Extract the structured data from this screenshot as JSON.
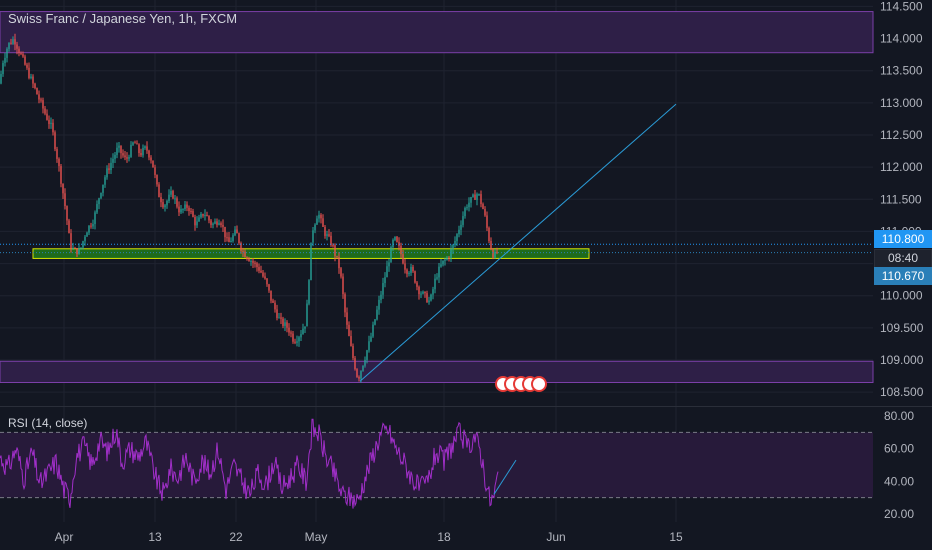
{
  "header": {
    "title": "Swiss Franc / Japanese Yen, 1h, FXCM"
  },
  "rsi_header": {
    "title": "RSI (14, close)"
  },
  "price_tags": {
    "last_price": "110.800",
    "countdown": "08:40",
    "prev_price": "110.670"
  },
  "colors": {
    "background": "#131722",
    "up_candle": "#26a69a",
    "down_candle": "#ef5350",
    "zone_purple": "#2e1f47",
    "zone_green": "#1f6b1c",
    "trendline": "#2a9bd6",
    "rsi_line": "#a12fc9",
    "axis_text": "#b2b5be"
  },
  "chart_data": [
    {
      "type": "candlestick",
      "title": "Swiss Franc / Japanese Yen, 1h, FXCM",
      "ylim": [
        108.3,
        114.6
      ],
      "y_ticks": [
        "114.500",
        "114.000",
        "113.500",
        "113.000",
        "112.500",
        "112.000",
        "111.500",
        "111.000",
        "110.500",
        "110.000",
        "109.500",
        "109.000",
        "108.500"
      ],
      "x_ticks": [
        "Apr",
        "13",
        "22",
        "May",
        "18",
        "Jun",
        "15"
      ],
      "waypoints": [
        [
          0,
          113.3
        ],
        [
          2,
          113.6
        ],
        [
          8,
          113.9
        ],
        [
          14,
          114.0
        ],
        [
          22,
          113.7
        ],
        [
          30,
          113.4
        ],
        [
          38,
          113.1
        ],
        [
          46,
          112.8
        ],
        [
          52,
          112.6
        ],
        [
          60,
          111.9
        ],
        [
          66,
          111.3
        ],
        [
          70,
          110.8
        ],
        [
          74,
          110.7
        ],
        [
          80,
          110.7
        ],
        [
          86,
          111.0
        ],
        [
          94,
          111.2
        ],
        [
          100,
          111.6
        ],
        [
          106,
          111.9
        ],
        [
          112,
          112.1
        ],
        [
          118,
          112.3
        ],
        [
          126,
          112.1
        ],
        [
          134,
          112.4
        ],
        [
          140,
          112.2
        ],
        [
          146,
          112.3
        ],
        [
          152,
          112.1
        ],
        [
          158,
          111.6
        ],
        [
          164,
          111.4
        ],
        [
          172,
          111.6
        ],
        [
          180,
          111.3
        ],
        [
          188,
          111.4
        ],
        [
          196,
          111.1
        ],
        [
          204,
          111.3
        ],
        [
          212,
          111.1
        ],
        [
          220,
          111.2
        ],
        [
          228,
          110.8
        ],
        [
          236,
          111.0
        ],
        [
          242,
          110.7
        ],
        [
          248,
          110.6
        ],
        [
          254,
          110.5
        ],
        [
          260,
          110.4
        ],
        [
          266,
          110.2
        ],
        [
          272,
          109.9
        ],
        [
          280,
          109.6
        ],
        [
          288,
          109.5
        ],
        [
          294,
          109.3
        ],
        [
          300,
          109.4
        ],
        [
          306,
          109.6
        ],
        [
          312,
          111.0
        ],
        [
          318,
          111.3
        ],
        [
          324,
          111.0
        ],
        [
          332,
          110.8
        ],
        [
          340,
          110.4
        ],
        [
          346,
          109.6
        ],
        [
          352,
          109.1
        ],
        [
          358,
          108.7
        ],
        [
          364,
          109.0
        ],
        [
          370,
          109.3
        ],
        [
          376,
          109.7
        ],
        [
          382,
          110.1
        ],
        [
          388,
          110.5
        ],
        [
          394,
          110.9
        ],
        [
          400,
          110.7
        ],
        [
          406,
          110.4
        ],
        [
          412,
          110.4
        ],
        [
          418,
          110.1
        ],
        [
          424,
          110.0
        ],
        [
          430,
          109.9
        ],
        [
          436,
          110.3
        ],
        [
          442,
          110.5
        ],
        [
          448,
          110.6
        ],
        [
          454,
          110.8
        ],
        [
          460,
          111.1
        ],
        [
          466,
          111.4
        ],
        [
          472,
          111.5
        ],
        [
          478,
          111.6
        ],
        [
          484,
          111.3
        ],
        [
          490,
          110.8
        ],
        [
          494,
          110.6
        ],
        [
          498,
          110.7
        ]
      ],
      "zones": [
        {
          "kind": "resistance",
          "y_from": 113.78,
          "y_to": 114.42
        },
        {
          "kind": "demand",
          "y_from": 110.58,
          "y_to": 110.73
        },
        {
          "kind": "support",
          "y_from": 108.65,
          "y_to": 108.98
        }
      ],
      "trendlines": [
        {
          "from": [
            360,
            108.67
          ],
          "to": [
            676,
            112.98
          ]
        }
      ],
      "reference_lines": [
        {
          "y": 110.8,
          "style": "dotted"
        },
        {
          "y": 110.67,
          "style": "dotted"
        }
      ]
    },
    {
      "type": "line",
      "title": "RSI (14, close)",
      "ylim": [
        15,
        85
      ],
      "y_ticks": [
        "80.00",
        "60.00",
        "40.00",
        "20.00"
      ],
      "levels": [
        70,
        30
      ],
      "band": [
        30,
        70
      ],
      "waypoints": [
        [
          0,
          55
        ],
        [
          8,
          48
        ],
        [
          16,
          60
        ],
        [
          24,
          42
        ],
        [
          32,
          58
        ],
        [
          40,
          38
        ],
        [
          48,
          45
        ],
        [
          56,
          52
        ],
        [
          64,
          35
        ],
        [
          70,
          30
        ],
        [
          76,
          55
        ],
        [
          84,
          62
        ],
        [
          92,
          50
        ],
        [
          100,
          65
        ],
        [
          108,
          58
        ],
        [
          116,
          72
        ],
        [
          122,
          52
        ],
        [
          130,
          60
        ],
        [
          138,
          55
        ],
        [
          146,
          64
        ],
        [
          152,
          50
        ],
        [
          158,
          38
        ],
        [
          164,
          32
        ],
        [
          170,
          48
        ],
        [
          178,
          42
        ],
        [
          186,
          55
        ],
        [
          194,
          40
        ],
        [
          202,
          52
        ],
        [
          210,
          45
        ],
        [
          218,
          60
        ],
        [
          226,
          35
        ],
        [
          234,
          50
        ],
        [
          242,
          40
        ],
        [
          250,
          32
        ],
        [
          258,
          45
        ],
        [
          266,
          38
        ],
        [
          274,
          52
        ],
        [
          282,
          36
        ],
        [
          290,
          42
        ],
        [
          298,
          50
        ],
        [
          306,
          40
        ],
        [
          312,
          72
        ],
        [
          318,
          70
        ],
        [
          326,
          55
        ],
        [
          334,
          45
        ],
        [
          342,
          32
        ],
        [
          350,
          30
        ],
        [
          358,
          28
        ],
        [
          364,
          40
        ],
        [
          372,
          55
        ],
        [
          380,
          68
        ],
        [
          388,
          72
        ],
        [
          396,
          60
        ],
        [
          404,
          52
        ],
        [
          412,
          42
        ],
        [
          420,
          35
        ],
        [
          428,
          40
        ],
        [
          436,
          58
        ],
        [
          444,
          52
        ],
        [
          452,
          62
        ],
        [
          460,
          70
        ],
        [
          468,
          60
        ],
        [
          474,
          68
        ],
        [
          480,
          60
        ],
        [
          486,
          40
        ],
        [
          490,
          28
        ],
        [
          494,
          30
        ],
        [
          498,
          45
        ]
      ],
      "trendlines": [
        {
          "from": [
            494,
            32
          ],
          "to": [
            516,
            53
          ]
        }
      ]
    }
  ]
}
